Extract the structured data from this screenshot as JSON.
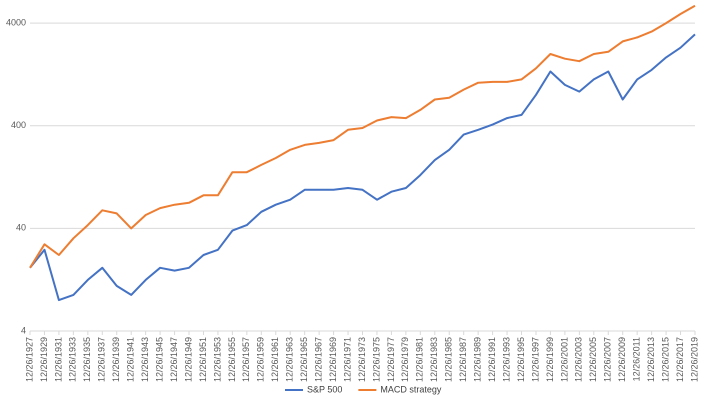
{
  "chart_data": {
    "type": "line",
    "categories": [
      "12/26/1927",
      "12/26/1929",
      "12/26/1931",
      "12/26/1933",
      "12/26/1935",
      "12/26/1937",
      "12/26/1939",
      "12/26/1941",
      "12/26/1943",
      "12/26/1945",
      "12/26/1947",
      "12/26/1949",
      "12/26/1951",
      "12/26/1953",
      "12/26/1955",
      "12/26/1957",
      "12/26/1959",
      "12/26/1961",
      "12/26/1963",
      "12/26/1965",
      "12/26/1967",
      "12/26/1969",
      "12/26/1971",
      "12/26/1973",
      "12/26/1975",
      "12/26/1977",
      "12/26/1979",
      "12/26/1981",
      "12/26/1983",
      "12/26/1985",
      "12/26/1987",
      "12/26/1989",
      "12/26/1991",
      "12/26/1993",
      "12/26/1995",
      "12/26/1997",
      "12/26/1999",
      "12/26/2001",
      "12/26/2003",
      "12/26/2005",
      "12/26/2007",
      "12/26/2009",
      "12/26/2011",
      "12/26/2013",
      "12/26/2015",
      "12/26/2017",
      "12/26/2019"
    ],
    "series": [
      {
        "name": "S&P 500",
        "color": "#4472c4",
        "values": [
          16.5,
          24.7,
          8,
          9,
          12.6,
          16.5,
          11,
          9,
          12.6,
          16.5,
          15.5,
          16.5,
          22,
          24.7,
          38,
          43,
          58,
          68,
          76,
          95,
          95,
          95,
          99,
          95,
          76,
          91,
          99,
          132,
          185,
          233,
          328,
          365,
          410,
          475,
          510,
          800,
          1350,
          1000,
          860,
          1130,
          1350,
          720,
          1130,
          1400,
          1850,
          2300,
          3100
        ]
      },
      {
        "name": "MACD strategy",
        "color": "#ed7d31",
        "values": [
          16.5,
          28,
          22,
          32,
          43,
          60,
          56,
          40,
          54,
          63,
          68,
          71,
          84,
          84,
          141,
          141,
          166,
          194,
          233,
          260,
          272,
          290,
          365,
          380,
          450,
          485,
          475,
          570,
          720,
          750,
          900,
          1050,
          1070,
          1070,
          1130,
          1450,
          2000,
          1800,
          1700,
          2000,
          2100,
          2650,
          2900,
          3300,
          4000,
          4900,
          5900
        ]
      }
    ],
    "y_scale": "log",
    "ylim": [
      4,
      6000
    ],
    "yticks": [
      4,
      40,
      400,
      4000
    ],
    "grid": true,
    "legend": "bottom"
  }
}
